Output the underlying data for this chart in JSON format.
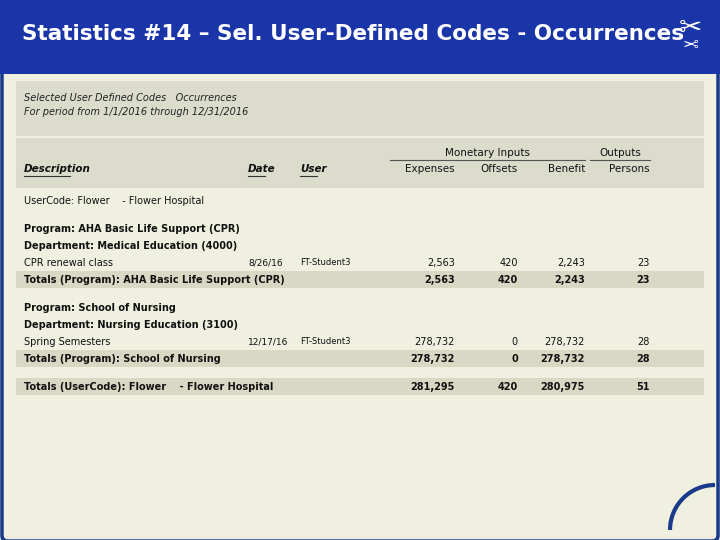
{
  "title": "Statistics #14 – Sel. User-Defined Codes - Occurrences",
  "title_bg": "#1a35a8",
  "title_fg": "#ffffff",
  "page_bg": "#c8d0e0",
  "content_bg": "#f0f0e0",
  "header_bg": "#dcdccc",
  "row_highlight_bg": "#d8d8c4",
  "border_color": "#1a3a8a",
  "report_header_lines": [
    "Selected User Defined Codes   Occurrences",
    "For period from 1/1/2016 through 12/31/2016"
  ],
  "rows": [
    {
      "type": "usercode",
      "text": "UserCode: Flower    - Flower Hospital",
      "date": "",
      "user": "",
      "values": []
    },
    {
      "type": "blank"
    },
    {
      "type": "program",
      "text": "Program: AHA Basic Life Support (CPR)",
      "date": "",
      "user": "",
      "values": []
    },
    {
      "type": "dept",
      "text": "Department: Medical Education (4000)",
      "date": "",
      "user": "",
      "values": []
    },
    {
      "type": "data",
      "text": "CPR renewal class",
      "date": "8/26/16",
      "user": "FT-Student3",
      "values": [
        "2,563",
        "420",
        "2,243",
        "23"
      ]
    },
    {
      "type": "subtotal",
      "text": "Totals (Program): AHA Basic Life Support (CPR)",
      "date": "",
      "user": "",
      "values": [
        "2,563",
        "420",
        "2,243",
        "23"
      ]
    },
    {
      "type": "blank"
    },
    {
      "type": "program",
      "text": "Program: School of Nursing",
      "date": "",
      "user": "",
      "values": []
    },
    {
      "type": "dept",
      "text": "Department: Nursing Education (3100)",
      "date": "",
      "user": "",
      "values": []
    },
    {
      "type": "data",
      "text": "Spring Semesters",
      "date": "12/17/16",
      "user": "FT-Student3",
      "values": [
        "278,732",
        "0",
        "278,732",
        "28"
      ]
    },
    {
      "type": "subtotal",
      "text": "Totals (Program): School of Nursing",
      "date": "",
      "user": "",
      "values": [
        "278,732",
        "0",
        "278,732",
        "28"
      ]
    },
    {
      "type": "blank"
    },
    {
      "type": "total",
      "text": "Totals (UserCode): Flower    - Flower Hospital",
      "date": "",
      "user": "",
      "values": [
        "281,295",
        "420",
        "280,975",
        "51"
      ]
    }
  ]
}
